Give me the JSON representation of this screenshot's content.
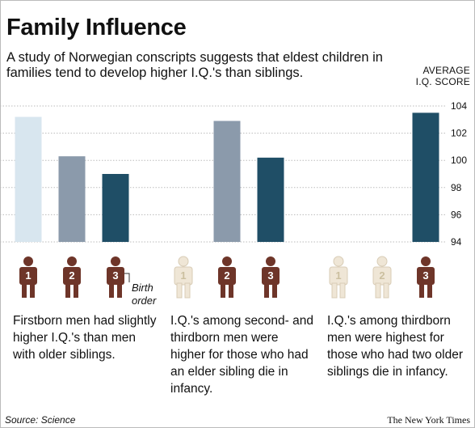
{
  "title": "Family Influence",
  "subtitle": "A study of Norwegian conscripts suggests that eldest children in families tend to develop higher I.Q.'s than siblings.",
  "ylabel_line1": "AVERAGE",
  "ylabel_line2": "I.Q. SCORE",
  "birth_order_line1": "Birth",
  "birth_order_line2": "order",
  "source": "Source: Science",
  "credit": "The New York Times",
  "colors": {
    "firstborn": "#d8e6ef",
    "secondborn": "#8b9aab",
    "thirdborn": "#1f4e66",
    "figure_active": "#6e3529",
    "figure_inactive": "#efe6d6",
    "grid": "#bbbbbb"
  },
  "chart_data": {
    "type": "bar",
    "ylim": [
      94,
      104
    ],
    "yticks": [
      104,
      102,
      100,
      98,
      96,
      94
    ],
    "grid": true,
    "groups": [
      {
        "caption": "Firstborn men had slightly higher I.Q.'s than men with older siblings.",
        "figures": [
          {
            "label": "1",
            "active": true
          },
          {
            "label": "2",
            "active": true
          },
          {
            "label": "3",
            "active": true
          }
        ],
        "bars": [
          {
            "birth_order": "1",
            "value": 103.2
          },
          {
            "birth_order": "2",
            "value": 100.3
          },
          {
            "birth_order": "3",
            "value": 99.0
          }
        ]
      },
      {
        "caption": "I.Q.'s among second- and thirdborn men were higher for those who had an elder sibling die in infancy.",
        "figures": [
          {
            "label": "1",
            "active": false
          },
          {
            "label": "2",
            "active": true
          },
          {
            "label": "3",
            "active": true
          }
        ],
        "bars": [
          {
            "birth_order": "2",
            "value": 102.9
          },
          {
            "birth_order": "3",
            "value": 100.2
          }
        ]
      },
      {
        "caption": "I.Q.'s among thirdborn men were highest for those who had two older siblings die in infancy.",
        "figures": [
          {
            "label": "1",
            "active": false
          },
          {
            "label": "2",
            "active": false
          },
          {
            "label": "3",
            "active": true
          }
        ],
        "bars": [
          {
            "birth_order": "3",
            "value": 103.5
          }
        ]
      }
    ]
  }
}
